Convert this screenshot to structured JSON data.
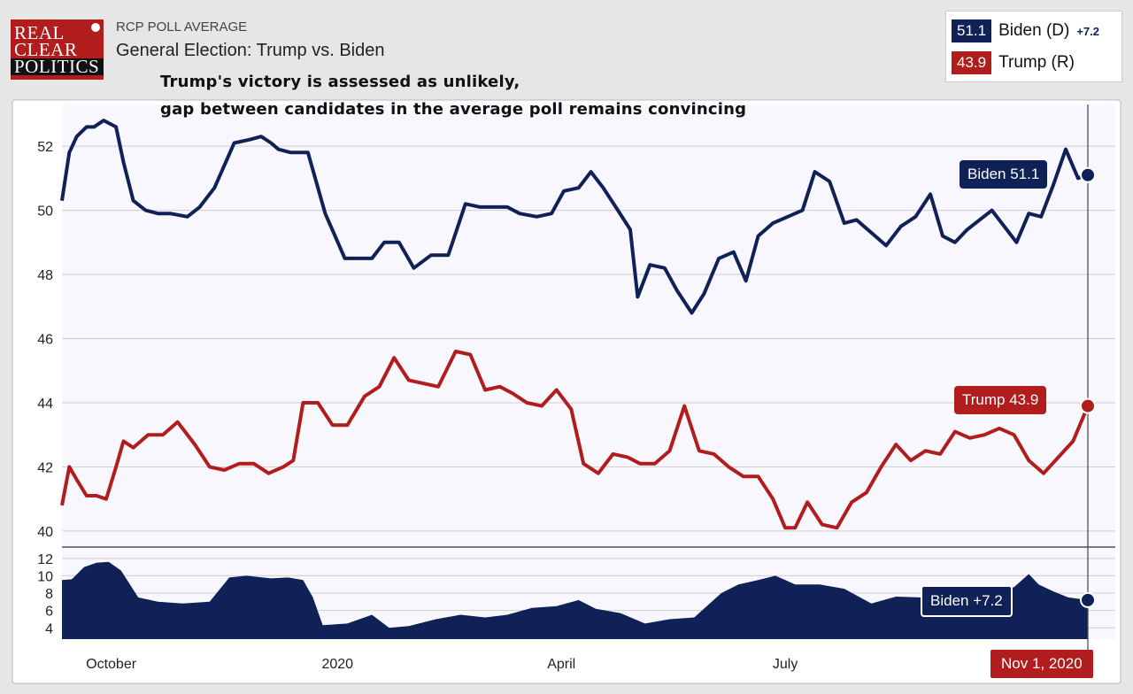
{
  "logo": {
    "line1": "REAL",
    "line2": "CLEAR",
    "line3": "POLITICS"
  },
  "header": {
    "kicker": "RCP POLL AVERAGE",
    "title": "General Election: Trump vs. Biden"
  },
  "annotation": {
    "line1": "Trump's victory is assessed as unlikely,",
    "line2": "gap between candidates in the average poll remains convincing"
  },
  "legend": [
    {
      "value": "51.1",
      "name": "Biden (D)",
      "spread": "+7.2",
      "color": "#0f2157"
    },
    {
      "value": "43.9",
      "name": "Trump (R)",
      "spread": "",
      "color": "#b11d1d"
    }
  ],
  "colors": {
    "biden": "#0f2157",
    "trump": "#b11d1d",
    "grid": "#cfcfcf",
    "background": "#f7f7fd"
  },
  "tooltips": {
    "biden": "Biden 51.1",
    "trump": "Trump 43.9",
    "spread": "Biden +7.2"
  },
  "current_date": "Nov 1, 2020",
  "chart_data": [
    {
      "type": "line",
      "ylim": [
        39.5,
        53.3
      ],
      "yticks": [
        40,
        42,
        44,
        46,
        48,
        50,
        52
      ],
      "x_range": [
        "2019-09-11",
        "2020-11-01"
      ],
      "x_ticks": [
        {
          "date": "2019-10-01",
          "label": "October"
        },
        {
          "date": "2020-01-01",
          "label": "2020"
        },
        {
          "date": "2020-04-01",
          "label": "April"
        },
        {
          "date": "2020-07-01",
          "label": "July"
        }
      ],
      "series": [
        {
          "name": "Biden (D)",
          "color": "#0f2157",
          "x": [
            "2019-09-11",
            "2019-09-14",
            "2019-09-17",
            "2019-09-21",
            "2019-09-24",
            "2019-09-28",
            "2019-10-03",
            "2019-10-06",
            "2019-10-10",
            "2019-10-15",
            "2019-10-20",
            "2019-10-25",
            "2019-11-01",
            "2019-11-06",
            "2019-11-12",
            "2019-11-20",
            "2019-11-26",
            "2019-12-01",
            "2019-12-05",
            "2019-12-08",
            "2019-12-13",
            "2019-12-20",
            "2019-12-27",
            "2020-01-04",
            "2020-01-10",
            "2020-01-15",
            "2020-01-20",
            "2020-01-26",
            "2020-02-01",
            "2020-02-08",
            "2020-02-15",
            "2020-02-22",
            "2020-02-28",
            "2020-03-04",
            "2020-03-10",
            "2020-03-15",
            "2020-03-22",
            "2020-03-28",
            "2020-04-02",
            "2020-04-08",
            "2020-04-13",
            "2020-04-18",
            "2020-04-24",
            "2020-04-29",
            "2020-05-02",
            "2020-05-07",
            "2020-05-13",
            "2020-05-18",
            "2020-05-24",
            "2020-05-29",
            "2020-06-04",
            "2020-06-10",
            "2020-06-15",
            "2020-06-20",
            "2020-06-26",
            "2020-07-02",
            "2020-07-08",
            "2020-07-13",
            "2020-07-19",
            "2020-07-25",
            "2020-07-30",
            "2020-08-05",
            "2020-08-11",
            "2020-08-17",
            "2020-08-23",
            "2020-08-29",
            "2020-09-03",
            "2020-09-08",
            "2020-09-13",
            "2020-09-18",
            "2020-09-23",
            "2020-09-28",
            "2020-10-03",
            "2020-10-08",
            "2020-10-13",
            "2020-10-18",
            "2020-10-23",
            "2020-10-28",
            "2020-11-01"
          ],
          "y": [
            50.3,
            51.8,
            52.3,
            52.6,
            52.6,
            52.8,
            52.6,
            51.5,
            50.3,
            50.0,
            49.9,
            49.9,
            49.8,
            50.1,
            50.7,
            52.1,
            52.2,
            52.3,
            52.1,
            51.9,
            51.8,
            51.8,
            49.9,
            48.5,
            48.5,
            48.5,
            49.0,
            49.0,
            48.2,
            48.6,
            48.6,
            50.2,
            50.1,
            50.1,
            50.1,
            49.9,
            49.8,
            49.9,
            50.6,
            50.7,
            51.2,
            50.7,
            50.0,
            49.4,
            47.3,
            48.3,
            48.2,
            47.5,
            46.8,
            47.4,
            48.5,
            48.7,
            47.8,
            49.2,
            49.6,
            49.8,
            50.0,
            51.2,
            50.9,
            49.6,
            49.7,
            49.3,
            48.9,
            49.5,
            49.8,
            50.5,
            49.2,
            49.0,
            49.4,
            49.7,
            50.0,
            49.5,
            49.0,
            49.9,
            49.8,
            50.8,
            51.9,
            51.0,
            51.1
          ]
        },
        {
          "name": "Trump (R)",
          "color": "#b11d1d",
          "x": [
            "2019-09-11",
            "2019-09-14",
            "2019-09-17",
            "2019-09-21",
            "2019-09-25",
            "2019-09-29",
            "2019-10-03",
            "2019-10-06",
            "2019-10-10",
            "2019-10-16",
            "2019-10-22",
            "2019-10-28",
            "2019-11-04",
            "2019-11-10",
            "2019-11-16",
            "2019-11-22",
            "2019-11-28",
            "2019-12-04",
            "2019-12-10",
            "2019-12-14",
            "2019-12-18",
            "2019-12-24",
            "2019-12-30",
            "2020-01-05",
            "2020-01-12",
            "2020-01-18",
            "2020-01-24",
            "2020-01-30",
            "2020-02-05",
            "2020-02-11",
            "2020-02-18",
            "2020-02-24",
            "2020-03-01",
            "2020-03-07",
            "2020-03-12",
            "2020-03-18",
            "2020-03-24",
            "2020-03-30",
            "2020-04-05",
            "2020-04-10",
            "2020-04-16",
            "2020-04-22",
            "2020-04-28",
            "2020-05-03",
            "2020-05-09",
            "2020-05-15",
            "2020-05-21",
            "2020-05-27",
            "2020-06-02",
            "2020-06-08",
            "2020-06-14",
            "2020-06-20",
            "2020-06-26",
            "2020-07-01",
            "2020-07-05",
            "2020-07-10",
            "2020-07-16",
            "2020-07-22",
            "2020-07-28",
            "2020-08-03",
            "2020-08-09",
            "2020-08-15",
            "2020-08-21",
            "2020-08-27",
            "2020-09-02",
            "2020-09-08",
            "2020-09-14",
            "2020-09-20",
            "2020-09-26",
            "2020-10-02",
            "2020-10-08",
            "2020-10-14",
            "2020-10-20",
            "2020-10-26",
            "2020-11-01"
          ],
          "y": [
            40.8,
            42.0,
            41.6,
            41.1,
            41.1,
            41.0,
            42.0,
            42.8,
            42.6,
            43.0,
            43.0,
            43.4,
            42.7,
            42.0,
            41.9,
            42.1,
            42.1,
            41.8,
            42.0,
            42.2,
            44.0,
            44.0,
            43.3,
            43.3,
            44.2,
            44.5,
            45.4,
            44.7,
            44.6,
            44.5,
            45.6,
            45.5,
            44.4,
            44.5,
            44.3,
            44.0,
            43.9,
            44.4,
            43.8,
            42.1,
            41.8,
            42.4,
            42.3,
            42.1,
            42.1,
            42.5,
            43.9,
            42.5,
            42.4,
            42.0,
            41.7,
            41.7,
            41.0,
            40.1,
            40.1,
            40.9,
            40.2,
            40.1,
            40.9,
            41.2,
            42.0,
            42.7,
            42.2,
            42.5,
            42.4,
            43.1,
            42.9,
            43.0,
            43.2,
            43.0,
            42.2,
            41.8,
            42.3,
            42.8,
            43.9
          ]
        }
      ]
    },
    {
      "type": "area",
      "ylim": [
        2.7,
        12.9
      ],
      "yticks": [
        4,
        6,
        8,
        10,
        12
      ],
      "series": [
        {
          "name": "Biden +7.2",
          "color": "#0f2157",
          "x": [
            "2019-09-11",
            "2019-09-15",
            "2019-09-20",
            "2019-09-25",
            "2019-09-30",
            "2019-10-05",
            "2019-10-12",
            "2019-10-20",
            "2019-10-30",
            "2019-11-10",
            "2019-11-18",
            "2019-11-25",
            "2019-12-05",
            "2019-12-12",
            "2019-12-18",
            "2019-12-22",
            "2019-12-26",
            "2020-01-05",
            "2020-01-15",
            "2020-01-22",
            "2020-01-30",
            "2020-02-10",
            "2020-02-20",
            "2020-03-01",
            "2020-03-10",
            "2020-03-20",
            "2020-03-30",
            "2020-04-08",
            "2020-04-15",
            "2020-04-25",
            "2020-05-05",
            "2020-05-15",
            "2020-05-25",
            "2020-06-05",
            "2020-06-12",
            "2020-06-20",
            "2020-06-27",
            "2020-07-05",
            "2020-07-15",
            "2020-07-25",
            "2020-08-05",
            "2020-08-15",
            "2020-08-25",
            "2020-09-05",
            "2020-09-15",
            "2020-09-25",
            "2020-10-02",
            "2020-10-08",
            "2020-10-12",
            "2020-10-18",
            "2020-10-24",
            "2020-11-01"
          ],
          "y": [
            9.5,
            9.6,
            11.0,
            11.5,
            11.6,
            10.6,
            7.5,
            7.0,
            6.8,
            7.0,
            9.8,
            10.0,
            9.7,
            9.8,
            9.5,
            7.5,
            4.3,
            4.5,
            5.5,
            4.0,
            4.2,
            5.0,
            5.5,
            5.2,
            5.5,
            6.3,
            6.5,
            7.2,
            6.2,
            5.7,
            4.5,
            5.0,
            5.2,
            8.0,
            9.0,
            9.5,
            10.0,
            9.0,
            9.0,
            8.5,
            6.8,
            7.6,
            7.5,
            7.4,
            7.8,
            8.2,
            8.7,
            10.2,
            9.0,
            8.2,
            7.5,
            7.2
          ]
        }
      ]
    }
  ]
}
